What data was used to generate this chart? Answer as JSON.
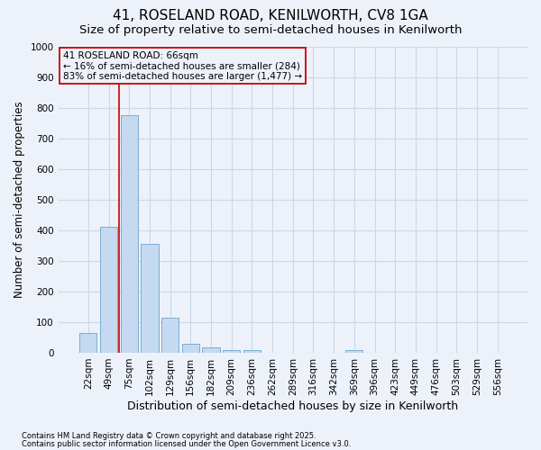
{
  "title1": "41, ROSELAND ROAD, KENILWORTH, CV8 1GA",
  "title2": "Size of property relative to semi-detached houses in Kenilworth",
  "xlabel": "Distribution of semi-detached houses by size in Kenilworth",
  "ylabel": "Number of semi-detached properties",
  "categories": [
    "22sqm",
    "49sqm",
    "75sqm",
    "102sqm",
    "129sqm",
    "156sqm",
    "182sqm",
    "209sqm",
    "236sqm",
    "262sqm",
    "289sqm",
    "316sqm",
    "342sqm",
    "369sqm",
    "396sqm",
    "423sqm",
    "449sqm",
    "476sqm",
    "503sqm",
    "529sqm",
    "556sqm"
  ],
  "values": [
    65,
    410,
    775,
    355,
    115,
    30,
    18,
    10,
    8,
    0,
    0,
    0,
    0,
    8,
    0,
    0,
    0,
    0,
    0,
    0,
    0
  ],
  "bar_color": "#c5d9f0",
  "bar_edge_color": "#7aadd4",
  "grid_color": "#c8d8e8",
  "bg_color": "#edf2fa",
  "vline_color": "#cc0000",
  "annotation_text": "41 ROSELAND ROAD: 66sqm\n← 16% of semi-detached houses are smaller (284)\n83% of semi-detached houses are larger (1,477) →",
  "annotation_box_color": "#cc0000",
  "ylim": [
    0,
    1000
  ],
  "yticks": [
    0,
    100,
    200,
    300,
    400,
    500,
    600,
    700,
    800,
    900,
    1000
  ],
  "footer1": "Contains HM Land Registry data © Crown copyright and database right 2025.",
  "footer2": "Contains public sector information licensed under the Open Government Licence v3.0.",
  "title1_fontsize": 11,
  "title2_fontsize": 9.5,
  "tick_fontsize": 7.5,
  "ylabel_fontsize": 8.5,
  "xlabel_fontsize": 9,
  "footer_fontsize": 6,
  "annot_fontsize": 7.5
}
